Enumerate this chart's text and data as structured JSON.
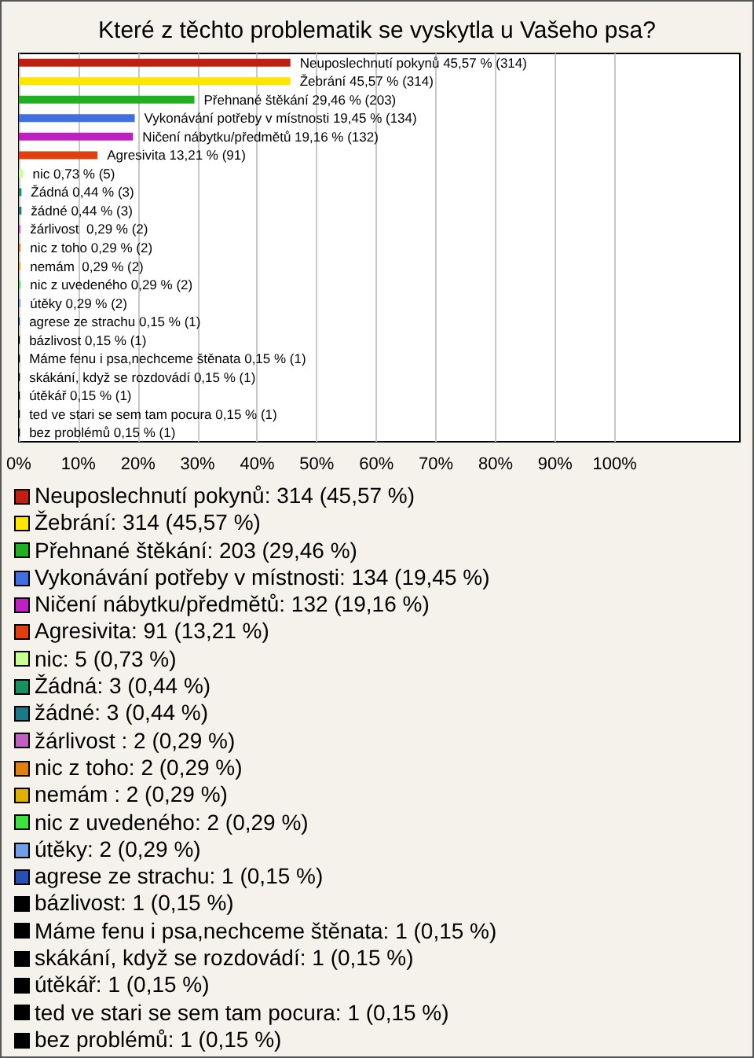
{
  "chart_data": {
    "type": "bar",
    "orientation": "horizontal",
    "title": "Které z těchto problematik se vyskytla u Vašeho psa?",
    "categories": [
      null,
      null,
      null,
      null,
      null,
      null,
      null,
      null,
      null,
      null,
      null,
      null,
      null,
      null,
      null,
      null,
      null,
      null,
      null,
      null,
      null
    ],
    "values": [
      45.57,
      45.57,
      29.46,
      19.45,
      19.16,
      13.21,
      0.73,
      0.44,
      0.44,
      0.29,
      0.29,
      0.29,
      0.29,
      0.29,
      0.15,
      0.15,
      0.15,
      0.15,
      0.15,
      0.15,
      0.15
    ],
    "colors": [
      "#c01f10",
      "#ffe600",
      "#22b022",
      "#3f6fe0",
      "#c020c0",
      "#e04010",
      "#c8ff90",
      "#1a9060",
      "#1a7a8a",
      "#c060c0",
      "#e08010",
      "#e0b000",
      "#40e040",
      "#6f9fe8",
      "#2850b0",
      "#000000",
      "#000000",
      "#000000",
      "#000000",
      "#000000",
      "#000000"
    ],
    "value_labels": [
      "Neuposlechnutí pokynů 45,57 % (314)",
      "Žebrání 45,57 % (314)",
      "Přehnané štěkání 29,46 % (203)",
      "Vykonávání potřeby v místnosti 19,45 % (134)",
      "Ničení nábytku/předmětů 19,16 % (132)",
      "Agresivita 13,21 % (91)",
      "nic 0,73 % (5)",
      "Žádná 0,44 % (3)",
      "žádné 0,44 % (3)",
      "žárlivost  0,29 % (2)",
      "nic z toho 0,29 % (2)",
      "nemám  0,29 % (2)",
      "nic z uvedeného 0,29 % (2)",
      "útěky 0,29 % (2)",
      "agrese ze strachu 0,15 % (1)",
      "bázlivost 0,15 % (1)",
      "Máme fenu i psa,nechceme štěnata 0,15 % (1)",
      "skákání, když se rozdovádí 0,15 % (1)",
      "útěkář 0,15 % (1)",
      "ted ve stari se sem tam pocura 0,15 % (1)",
      "bez problémů 0,15 % (1)"
    ],
    "annotations": [
      "Neuposlechnutí pokynů: 314 (45,57 %)",
      "Žebrání: 314 (45,57 %)",
      "Přehnané štěkání: 203 (29,46 %)",
      "Vykonávání potřeby v místnosti: 134 (19,45 %)",
      "Ničení nábytku/předmětů: 132 (19,16 %)",
      "Agresivita: 91 (13,21 %)",
      "nic: 5 (0,73 %)",
      "Žádná: 3 (0,44 %)",
      "žádné: 3 (0,44 %)",
      "žárlivost : 2 (0,29 %)",
      "nic z toho: 2 (0,29 %)",
      "nemám : 2 (0,29 %)",
      "nic z uvedeného: 2 (0,29 %)",
      "útěky: 2 (0,29 %)",
      "agrese ze strachu: 1 (0,15 %)",
      "bázlivost: 1 (0,15 %)",
      "Máme fenu i psa,nechceme štěnata: 1 (0,15 %)",
      "skákání, když se rozdovádí: 1 (0,15 %)",
      "útěkář: 1 (0,15 %)",
      "ted ve stari se sem tam pocura: 1 (0,15 %)",
      "bez problémů: 1 (0,15 %)"
    ],
    "xlim": [
      0,
      121
    ],
    "xticks": [
      {
        "value": 0,
        "label": "0%"
      },
      {
        "value": 10,
        "label": "10%"
      },
      {
        "value": 20,
        "label": "20%"
      },
      {
        "value": 30,
        "label": "30%"
      },
      {
        "value": 40,
        "label": "40%"
      },
      {
        "value": 50,
        "label": "50%"
      },
      {
        "value": 60,
        "label": "60%"
      },
      {
        "value": 70,
        "label": "70%"
      },
      {
        "value": 80,
        "label": "80%"
      },
      {
        "value": 90,
        "label": "90%"
      },
      {
        "value": 100,
        "label": "100%"
      }
    ],
    "grid": "x"
  }
}
